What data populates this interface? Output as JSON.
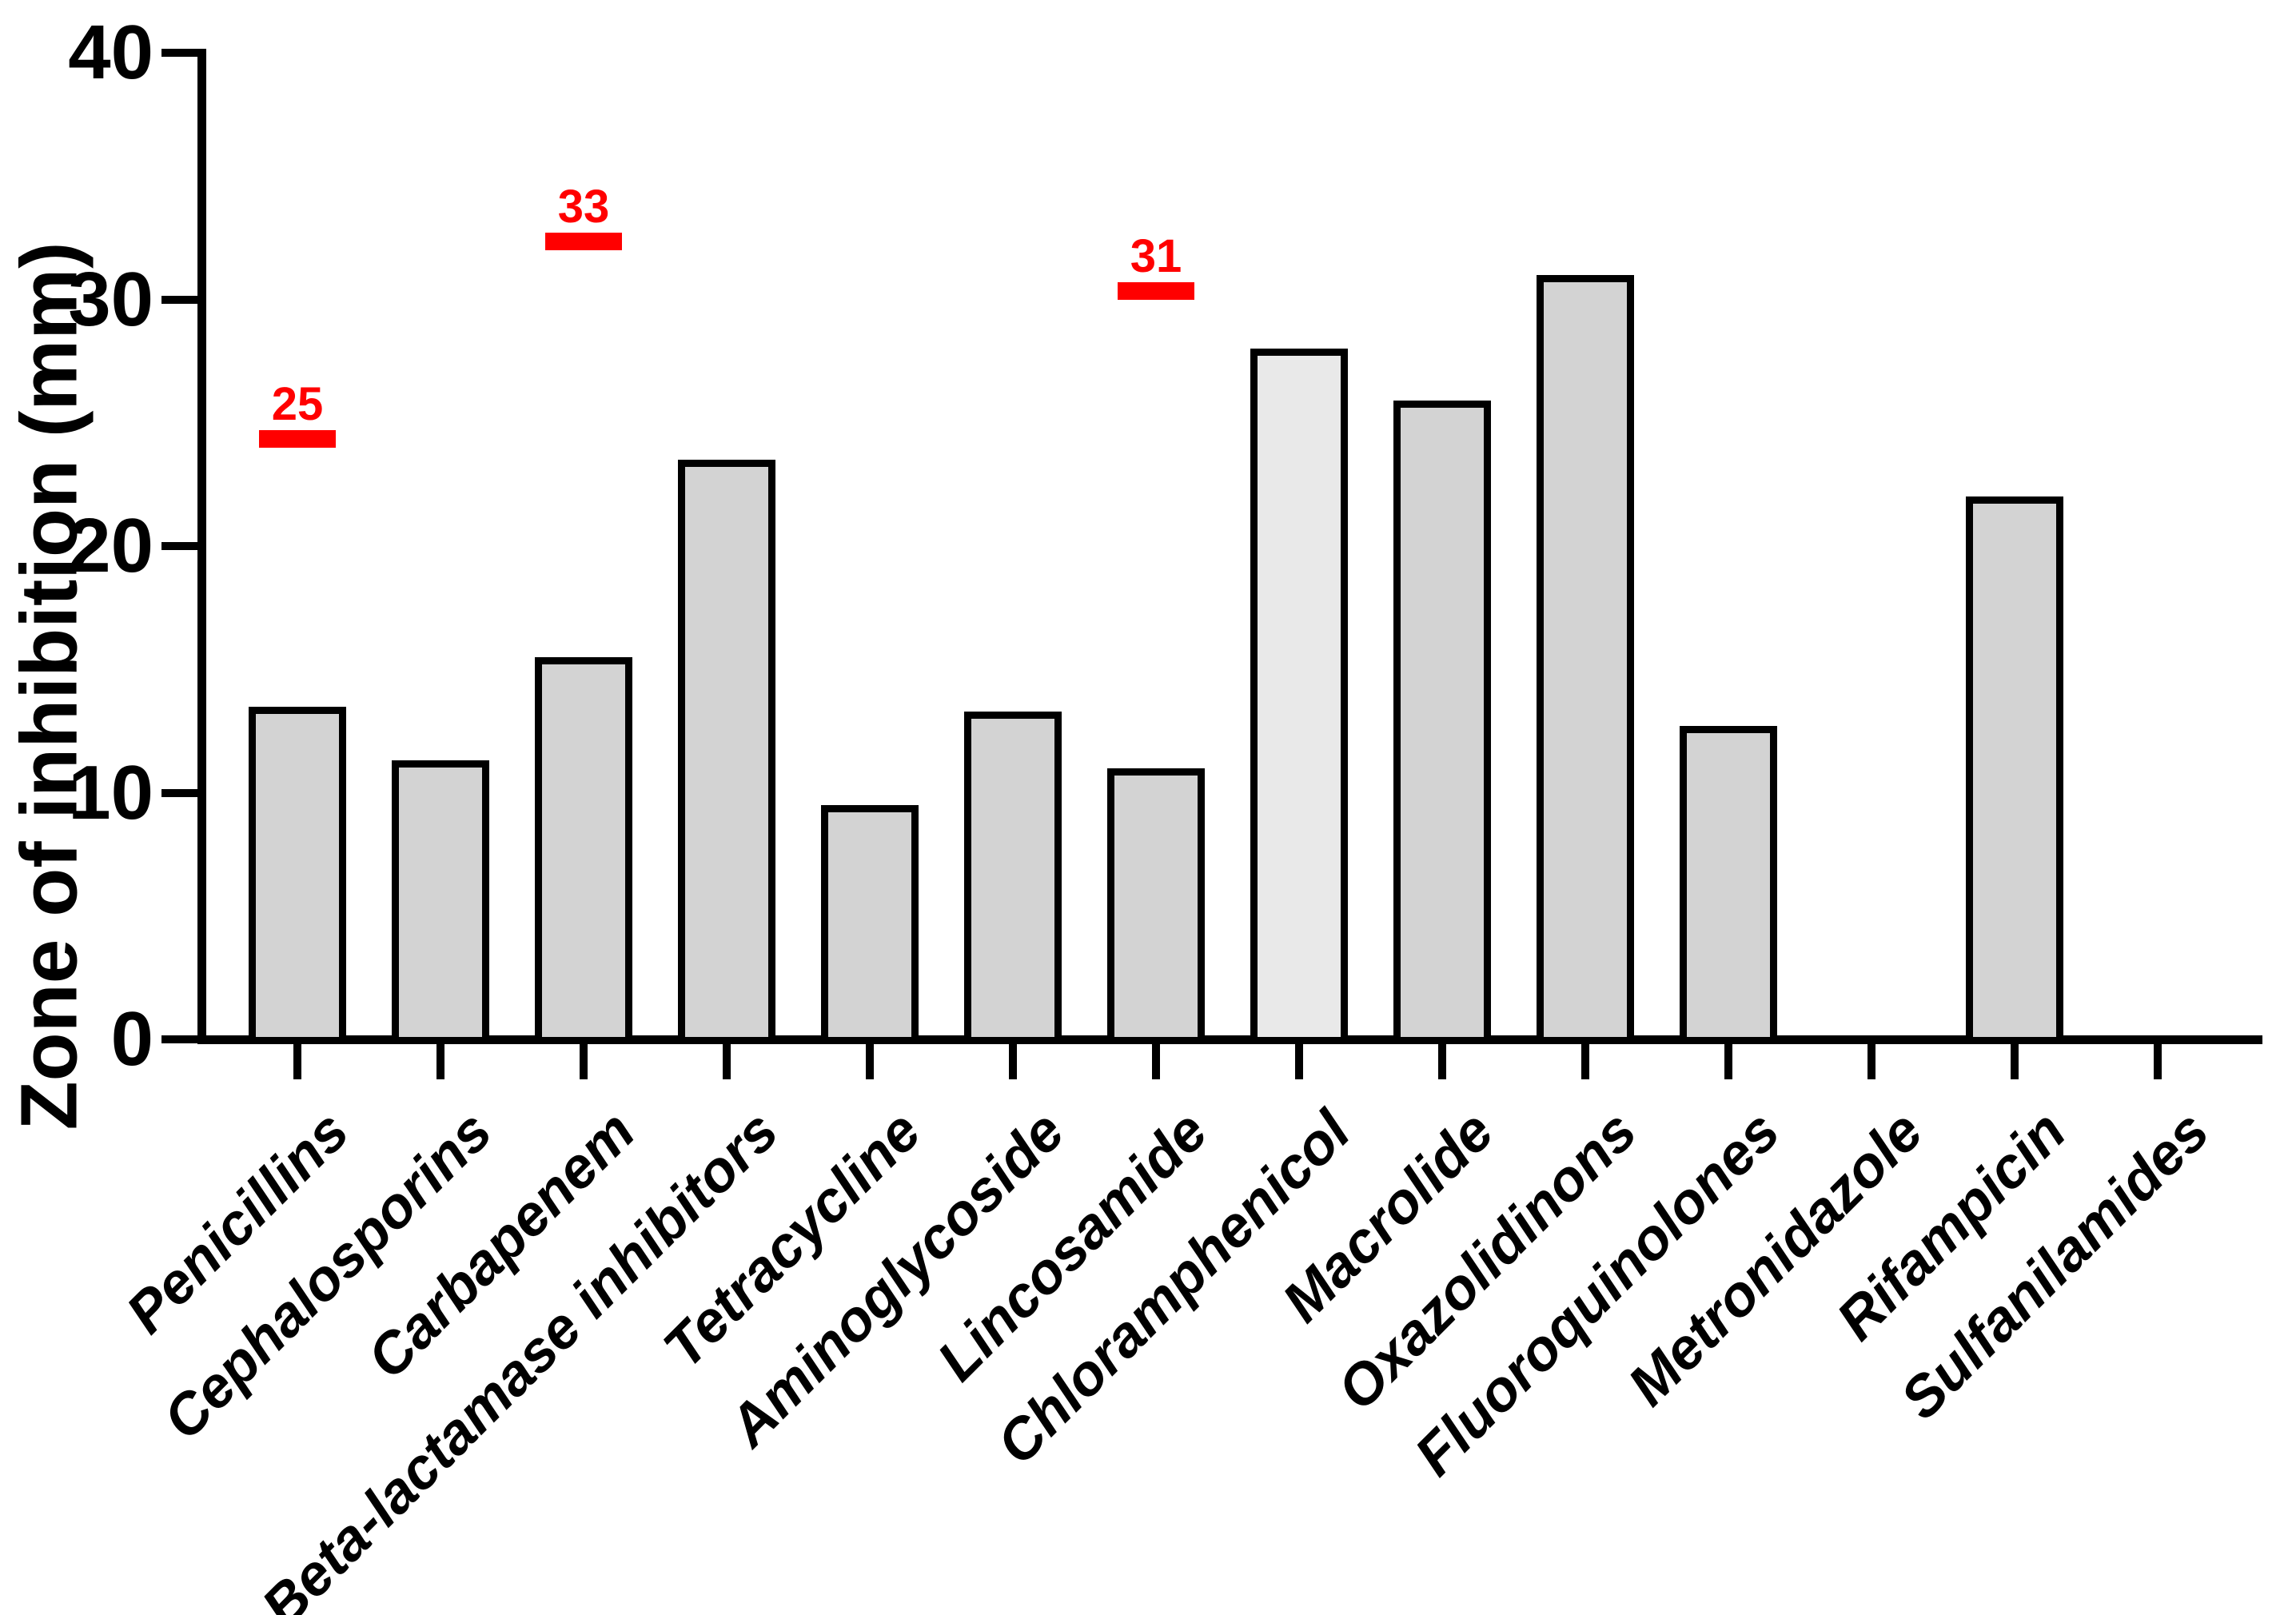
{
  "chart_data": {
    "type": "bar",
    "title": "",
    "xlabel": "",
    "ylabel": "Zone of inhibition (mm)",
    "ylim": [
      0,
      40
    ],
    "yticks": [
      0,
      10,
      20,
      30,
      40
    ],
    "ytick_labels": [
      "0",
      "10",
      "20",
      "30",
      "40"
    ],
    "grid": false,
    "legend": false,
    "categories": [
      "Penicillins",
      "Cephalosporins",
      "Carbapenem",
      "Beta-lactamase inhibitors",
      "Tetracycline",
      "Aminoglycoside",
      "Lincosamide",
      "Chloramphenicol",
      "Macrolide",
      "Oxazolidinons",
      "Fluoroquinolones",
      "Metronidazole",
      "Rifampicin",
      "Sulfanilamides"
    ],
    "values": [
      13.5,
      11.3,
      15.5,
      23.5,
      9.5,
      13.3,
      11.0,
      28.0,
      25.9,
      31.0,
      12.7,
      0,
      22.0,
      0
    ],
    "bar_colors": [
      "#d3d3d3",
      "#d3d3d3",
      "#d3d3d3",
      "#d3d3d3",
      "#d3d3d3",
      "#d3d3d3",
      "#d3d3d3",
      "#e9e9e9",
      "#d3d3d3",
      "#d3d3d3",
      "#d3d3d3",
      "#d3d3d3",
      "#d3d3d3",
      "#d3d3d3"
    ],
    "bar_border_color": "#000000",
    "axis_color": "#000000",
    "annotation_color": "#ff0000",
    "annotations": [
      {
        "label": "25",
        "value": 25,
        "category": "Penicillins"
      },
      {
        "label": "33",
        "value": 33,
        "category": "Carbapenem"
      },
      {
        "label": "31",
        "value": 31,
        "category": "Lincosamide"
      }
    ]
  }
}
